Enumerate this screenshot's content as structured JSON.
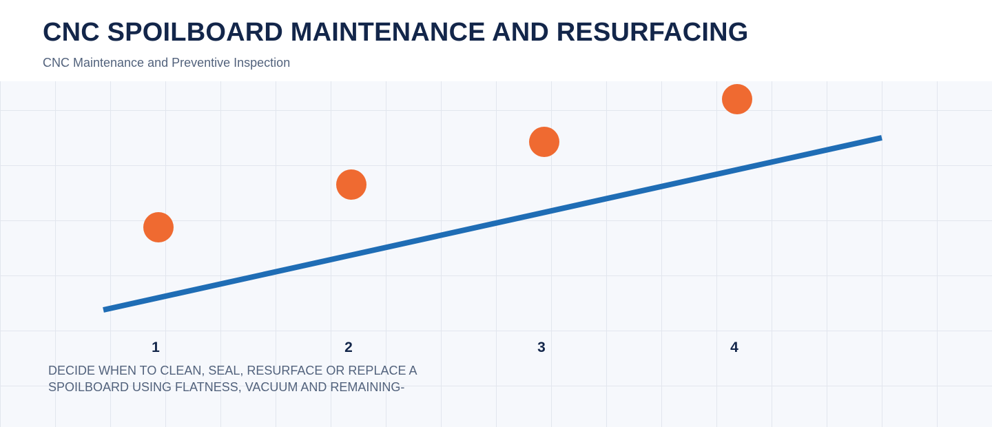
{
  "header": {
    "title": "CNC SPOILBOARD MAINTENANCE AND RESURFACING",
    "subtitle": "CNC Maintenance and Preventive Inspection"
  },
  "steps": [
    {
      "label": "1"
    },
    {
      "label": "2"
    },
    {
      "label": "3"
    },
    {
      "label": "4"
    }
  ],
  "description": "DECIDE WHEN TO CLEAN, SEAL, RESURFACE OR REPLACE A SPOILBOARD USING FLATNESS, VACUUM AND REMAINING-",
  "colors": {
    "accent_line": "#1f6db5",
    "marker": "#ef6a31",
    "title": "#13264a",
    "grid_background": "#f6f8fc"
  }
}
